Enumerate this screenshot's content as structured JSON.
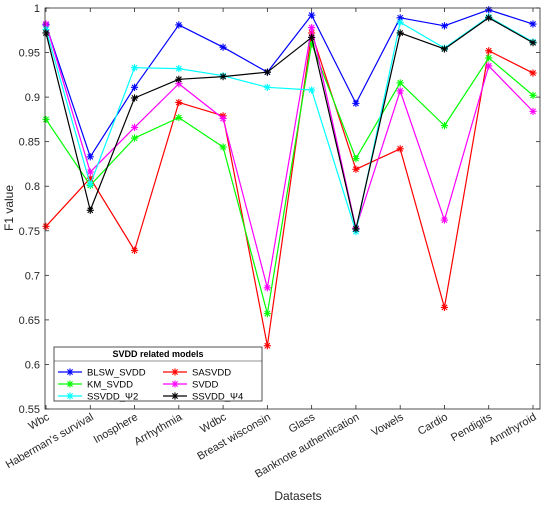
{
  "chart_data": {
    "type": "line",
    "title": "",
    "xlabel": "Datasets",
    "ylabel": "F1 value",
    "ylim": [
      0.55,
      1.0
    ],
    "yticks": [
      "0.55",
      "0.6",
      "0.65",
      "0.7",
      "0.75",
      "0.8",
      "0.85",
      "0.9",
      "0.95",
      "1"
    ],
    "grid": false,
    "categories": [
      "Wbc",
      "Haberman's survival",
      "Inosphere",
      "Arrhythmia",
      "Wdbc",
      "Breast wisconsin",
      "Glass",
      "Banknote authentication",
      "Vowels",
      "Cardio",
      "Pendigits",
      "Annthyroid"
    ],
    "legend": {
      "title": "SVDD related models",
      "placement": "bottom-left"
    },
    "series": [
      {
        "name": "BLSW_SVDD",
        "color": "#0000ff",
        "values": [
          0.981,
          0.833,
          0.911,
          0.981,
          0.956,
          0.928,
          0.992,
          0.893,
          0.989,
          0.98,
          0.998,
          0.982
        ]
      },
      {
        "name": "SASVDD",
        "color": "#ff0000",
        "values": [
          0.755,
          0.809,
          0.728,
          0.894,
          0.879,
          0.621,
          0.972,
          0.819,
          0.842,
          0.664,
          0.952,
          0.927
        ]
      },
      {
        "name": "KM_SVDD",
        "color": "#00ff00",
        "values": [
          0.875,
          0.801,
          0.854,
          0.877,
          0.844,
          0.657,
          0.96,
          0.831,
          0.916,
          0.868,
          0.944,
          0.902
        ]
      },
      {
        "name": "SVDD",
        "color": "#ff00ff",
        "values": [
          0.982,
          0.816,
          0.866,
          0.915,
          0.876,
          0.686,
          0.978,
          0.753,
          0.907,
          0.762,
          0.935,
          0.884
        ]
      },
      {
        "name": "SSVDD_Ψ2",
        "color": "#00ffff",
        "values": [
          0.976,
          0.802,
          0.933,
          0.932,
          0.924,
          0.911,
          0.908,
          0.749,
          0.984,
          0.955,
          0.99,
          0.962
        ]
      },
      {
        "name": "SSVDD_Ψ4",
        "color": "#000000",
        "values": [
          0.972,
          0.773,
          0.899,
          0.92,
          0.923,
          0.928,
          0.967,
          0.752,
          0.972,
          0.954,
          0.989,
          0.961
        ]
      }
    ]
  }
}
